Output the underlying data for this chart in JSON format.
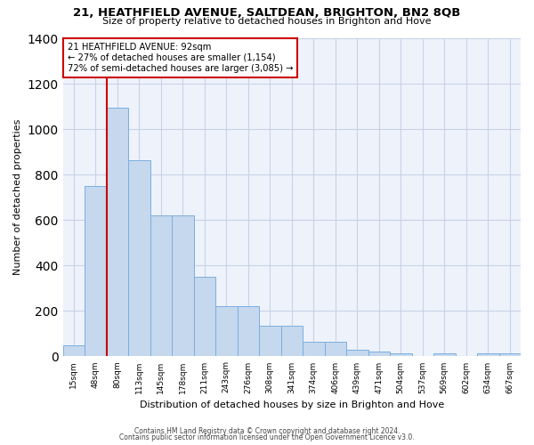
{
  "title": "21, HEATHFIELD AVENUE, SALTDEAN, BRIGHTON, BN2 8QB",
  "subtitle": "Size of property relative to detached houses in Brighton and Hove",
  "xlabel": "Distribution of detached houses by size in Brighton and Hove",
  "ylabel": "Number of detached properties",
  "footer1": "Contains HM Land Registry data © Crown copyright and database right 2024.",
  "footer2": "Contains public sector information licensed under the Open Government Licence v3.0.",
  "categories": [
    "15sqm",
    "48sqm",
    "80sqm",
    "113sqm",
    "145sqm",
    "178sqm",
    "211sqm",
    "243sqm",
    "276sqm",
    "308sqm",
    "341sqm",
    "374sqm",
    "406sqm",
    "439sqm",
    "471sqm",
    "504sqm",
    "537sqm",
    "569sqm",
    "602sqm",
    "634sqm",
    "667sqm"
  ],
  "bar_heights": [
    50,
    750,
    1095,
    865,
    620,
    620,
    350,
    220,
    220,
    135,
    135,
    65,
    65,
    30,
    20,
    12,
    0,
    12,
    0,
    12,
    12
  ],
  "property_line_x": 1.5,
  "bar_color": "#c5d8ed",
  "bar_edge_color": "#7aafe0",
  "marker_color": "#cc0000",
  "background_color": "#eef2fb",
  "grid_color": "#c8d2e8",
  "annotation_box_color": "#cc0000",
  "ylim": [
    0,
    1400
  ],
  "yticks": [
    0,
    200,
    400,
    600,
    800,
    1000,
    1200,
    1400
  ]
}
